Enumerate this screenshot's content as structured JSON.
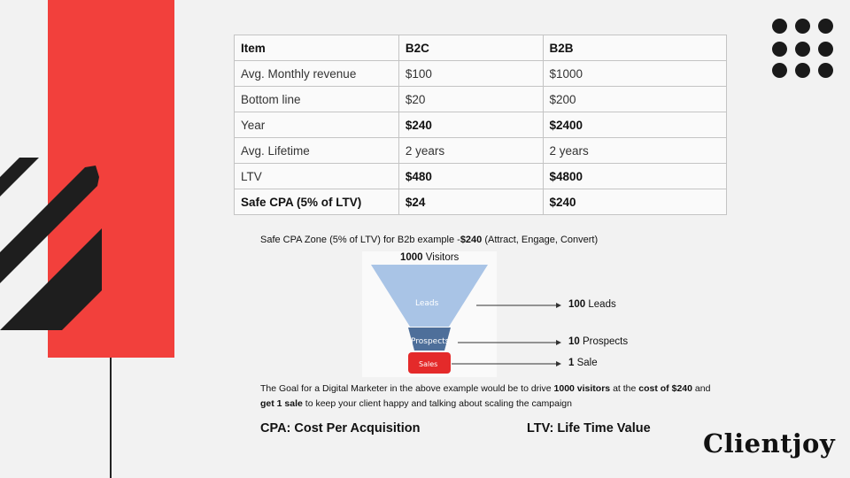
{
  "table": {
    "header": [
      "Item",
      "B2C",
      "B2B"
    ],
    "rows": [
      [
        "Avg. Monthly revenue",
        "$100",
        "$1000"
      ],
      [
        "Bottom line",
        "$20",
        "$200"
      ],
      [
        "Year",
        "$240",
        "$2400"
      ],
      [
        "Avg. Lifetime",
        "2 years",
        "2 years"
      ],
      [
        "LTV",
        "$480",
        "$4800"
      ],
      [
        "Safe CPA (5% of LTV)",
        "$24",
        "$240"
      ]
    ]
  },
  "caption": {
    "prefix": "Safe CPA Zone (5% of LTV) for B2b example -",
    "amount": "$240",
    "suffix": " (Attract, Engage, Convert)"
  },
  "funnel": {
    "visitors_count": "1000",
    "visitors_label": "Visitors",
    "leads_label": "Leads",
    "prospects_label": "Prospects",
    "sales_label": "Sales",
    "stages": [
      {
        "count": "100",
        "label": "Leads"
      },
      {
        "count": "10",
        "label": "Prospects"
      },
      {
        "count": "1",
        "label": "Sale"
      }
    ],
    "colors": {
      "leads": "#a9c4e6",
      "prospects": "#4e6f9a",
      "sales": "#e42a2a"
    }
  },
  "goal": {
    "t1": "The Goal for a Digital Marketer in the above example would be to drive ",
    "b1": "1000 visitors",
    "t2": " at the ",
    "b2": "cost of $240",
    "t3": " and ",
    "b3": "get 1 sale",
    "t4": " to keep your client happy and talking about scaling the campaign"
  },
  "definitions": {
    "cpa": "CPA: Cost Per Acquisition",
    "ltv": "LTV: Life Time Value"
  },
  "brand": {
    "logo_text": "Clientjoy",
    "accent": "#f2403c"
  }
}
